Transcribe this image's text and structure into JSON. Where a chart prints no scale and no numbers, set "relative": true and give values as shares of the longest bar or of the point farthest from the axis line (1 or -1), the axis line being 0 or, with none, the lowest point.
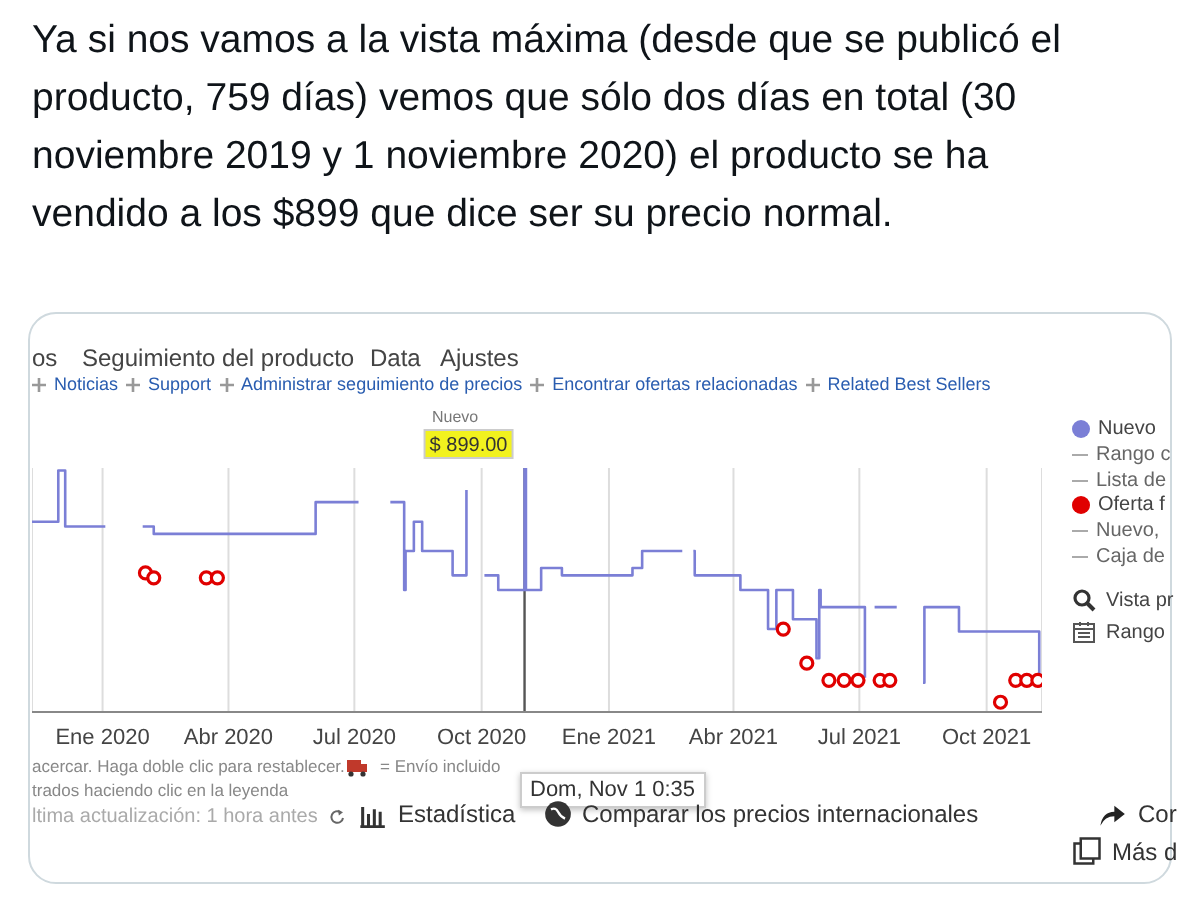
{
  "chart_data": {
    "type": "step",
    "title": "Ya si nos vamos a la vista máxima (desde que se publicó el producto, 759 días) vemos que sólo dos días en total (30 noviembre 2019 y 1 noviembre 2020) el producto se ha vendido a los $899 que dice ser su precio normal.",
    "relative": true,
    "xlim": [
      "2019-11-11",
      "2021-11-10"
    ],
    "xticks": [
      {
        "value": "2020-01-01",
        "label": "Ene 2020"
      },
      {
        "value": "2020-04-01",
        "label": "Abr 2020"
      },
      {
        "value": "2020-07-01",
        "label": "Jul 2020"
      },
      {
        "value": "2020-10-01",
        "label": "Oct 2020"
      },
      {
        "value": "2021-01-01",
        "label": "Ene 2021"
      },
      {
        "value": "2021-04-01",
        "label": "Abr 2021"
      },
      {
        "value": "2021-07-01",
        "label": "Jul 2021"
      },
      {
        "value": "2021-10-01",
        "label": "Oct 2021"
      }
    ],
    "grid": "x",
    "legend": "right",
    "series": [
      {
        "name": "Nuevo",
        "color": "#7b7fd6",
        "x": [
          "2019-11-11",
          "2019-11-30",
          "2019-12-05",
          "2020-01-03",
          "2020-01-04",
          "2020-01-30",
          "2020-02-07",
          "2020-06-03",
          "2020-07-04",
          "2020-07-05",
          "2020-07-27",
          "2020-08-06",
          "2020-08-07",
          "2020-08-13",
          "2020-08-19",
          "2020-09-10",
          "2020-09-20",
          "2020-09-21",
          "2020-10-03",
          "2020-10-13",
          "2020-11-01",
          "2020-11-02",
          "2020-11-13",
          "2020-11-28",
          "2021-01-18",
          "2021-01-25",
          "2021-02-23",
          "2021-02-24",
          "2021-03-03",
          "2021-03-04",
          "2021-04-06",
          "2021-04-26",
          "2021-05-02",
          "2021-05-14",
          "2021-05-31",
          "2021-06-02",
          "2021-06-03",
          "2021-07-05",
          "2021-07-06",
          "2021-07-12",
          "2021-07-28",
          "2021-07-29",
          "2021-08-16",
          "2021-08-17",
          "2021-09-11",
          "2021-11-08"
        ],
        "values": [
          0.78,
          0.99,
          0.76,
          0.76,
          null,
          0.76,
          0.73,
          0.86,
          0.86,
          null,
          0.86,
          0.5,
          0.66,
          0.78,
          0.66,
          0.56,
          0.91,
          null,
          0.56,
          0.5,
          1,
          0.5,
          0.59,
          0.56,
          0.59,
          0.66,
          0.66,
          null,
          0.66,
          0.56,
          0.5,
          0.34,
          0.5,
          0.38,
          0.22,
          0.5,
          0.43,
          0.14,
          null,
          0.43,
          0.43,
          null,
          0.12,
          0.43,
          0.33,
          0.14
        ]
      },
      {
        "name": "Oferta f",
        "type": "scatter",
        "color": "#e00000",
        "x": [
          "2020-02-01",
          "2020-02-07",
          "2020-03-16",
          "2020-03-24",
          "2021-05-07",
          "2021-05-24",
          "2021-06-09",
          "2021-06-20",
          "2021-06-30",
          "2021-07-16",
          "2021-07-23",
          "2021-10-11",
          "2021-10-22",
          "2021-10-30",
          "2021-11-07"
        ],
        "values": [
          0.57,
          0.55,
          0.55,
          0.55,
          0.34,
          0.2,
          0.13,
          0.13,
          0.13,
          0.13,
          0.13,
          0.04,
          0.13,
          0.13,
          0.13
        ]
      }
    ],
    "ref_lines": [
      {
        "axis": "x",
        "value": "2020-11-01",
        "color": "#555555"
      }
    ],
    "annotations": [
      {
        "text": "$ 899.00",
        "x": "2020-11-01",
        "y": 1
      },
      "Nuevo",
      "os",
      "Seguimiento del producto",
      "Data",
      "Ajustes",
      "Noticias",
      "Support",
      "Administrar seguimiento de precios",
      "Encontrar ofertas relacionadas",
      "Related Best Sellers",
      "Rango c",
      "Lista de",
      "Nuevo,",
      "Caja de",
      "Vista pr",
      "Rango",
      "acercar. Haga doble clic para restablecer.",
      "= Envío incluido",
      "trados haciendo clic en la leyenda",
      "Dom, Nov 1 0:35",
      "ltima actualización: 1 hora antes",
      "Estadística",
      "Comparar los precios internacionales",
      "Cor",
      "Más d"
    ]
  }
}
